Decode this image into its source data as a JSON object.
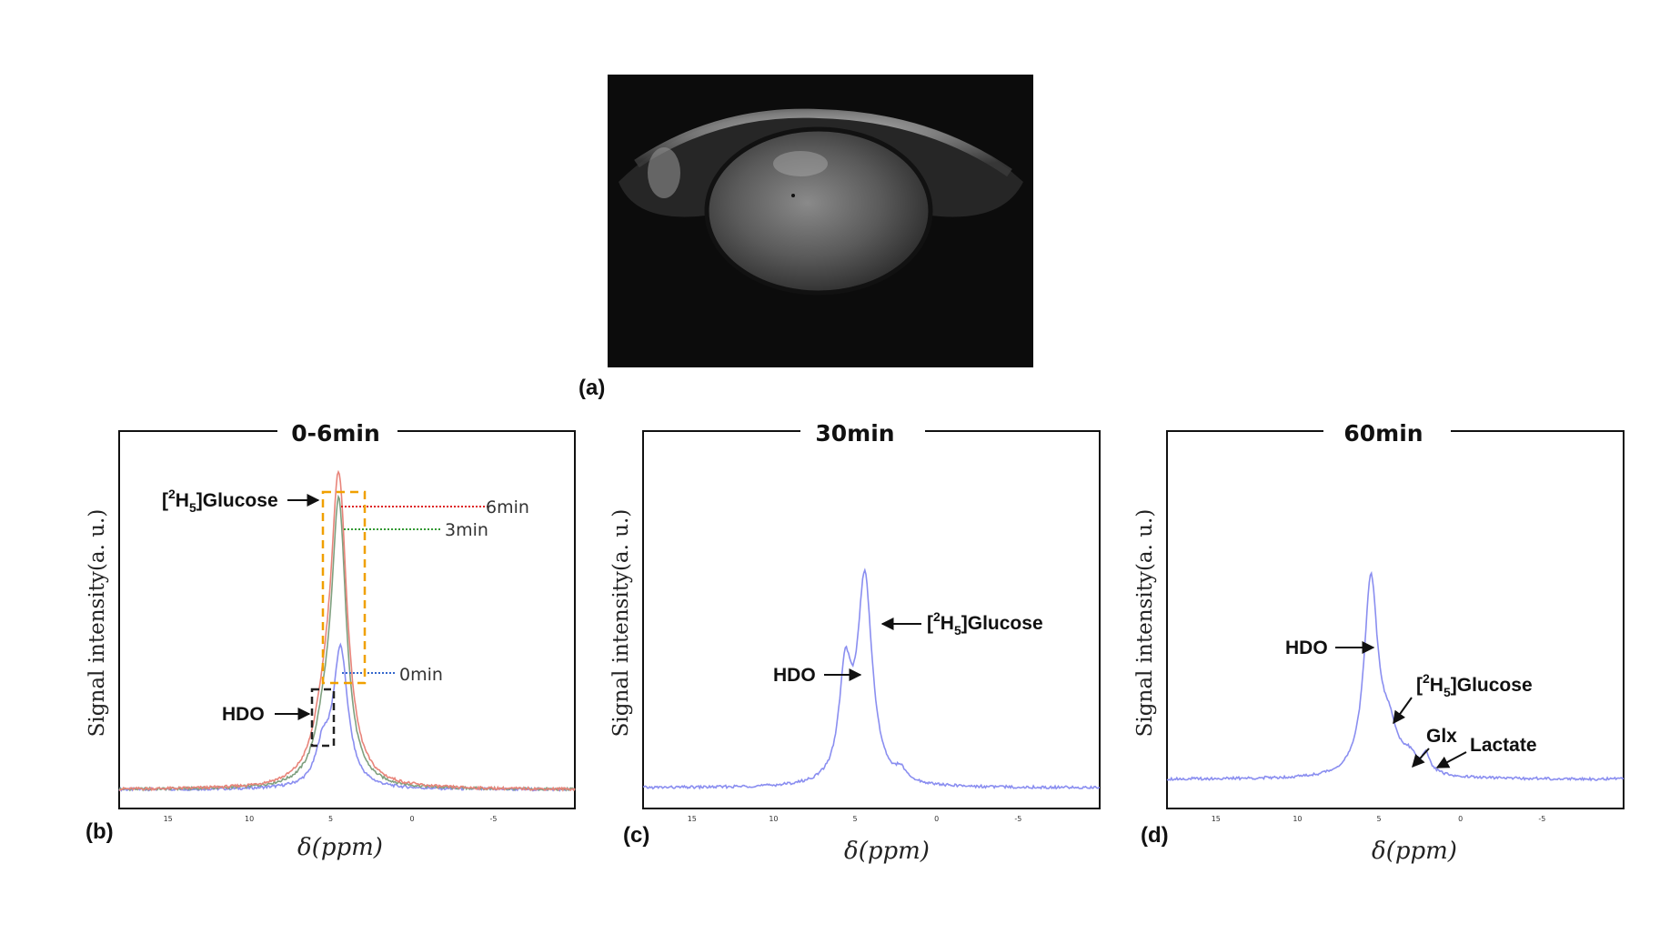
{
  "figure": {
    "label_a": "(a)",
    "label_b": "(b)",
    "label_c": "(c)",
    "label_d": "(d)"
  },
  "mri_image": {
    "description_icon": "brain-mri-image"
  },
  "colors": {
    "series_0min": "#8a8ef0",
    "series_3min": "#7fa07f",
    "series_6min": "#e8847a",
    "guide_6min": "#dd2222",
    "guide_3min": "#339933",
    "guide_0min": "#3366cc",
    "box_glucose": "#f0a000",
    "box_hdo": "#222222"
  },
  "chart_data": [
    {
      "type": "line",
      "title": "0-6min",
      "xlabel": "δ(ppm)",
      "ylabel": "Signal intensity(a. u.)",
      "xlim": [
        18,
        -10
      ],
      "x_ticks": [
        "15",
        "10",
        "5",
        "0",
        "-5"
      ],
      "series": [
        {
          "name": "0min",
          "peaks": [
            {
              "ppm": 4.4,
              "height": 0.4,
              "width": 0.55
            },
            {
              "ppm": 5.5,
              "height": 0.1,
              "width": 0.5
            }
          ],
          "baseline": 0.015
        },
        {
          "name": "3min",
          "peaks": [
            {
              "ppm": 4.5,
              "height": 0.8,
              "width": 0.55
            },
            {
              "ppm": 5.4,
              "height": 0.12,
              "width": 0.7
            }
          ],
          "baseline": 0.015
        },
        {
          "name": "6min",
          "peaks": [
            {
              "ppm": 4.5,
              "height": 0.86,
              "width": 0.6
            },
            {
              "ppm": 5.4,
              "height": 0.14,
              "width": 0.8
            }
          ],
          "baseline": 0.015
        }
      ],
      "annotations": {
        "glucose_prefix": "[",
        "glucose_sup": "2",
        "glucose_H": "]H",
        "glucose_sub": "5",
        "glucose_suffix": "]Glucose",
        "hdo": "HDO",
        "t6": "6min",
        "t3": "3min",
        "t0": "0min"
      }
    },
    {
      "type": "line",
      "title": "30min",
      "xlabel": "δ(ppm)",
      "ylabel": "Signal intensity(a. u.)",
      "xlim": [
        18,
        -10
      ],
      "x_ticks": [
        "15",
        "10",
        "5",
        "0",
        "-5"
      ],
      "series": [
        {
          "name": "",
          "peaks": [
            {
              "ppm": 4.4,
              "height": 0.59,
              "width": 0.55
            },
            {
              "ppm": 5.6,
              "height": 0.3,
              "width": 0.45
            },
            {
              "ppm": 2.2,
              "height": 0.03,
              "width": 0.35
            }
          ],
          "baseline": 0.02
        }
      ],
      "annotations": {
        "glucose": "[2H5]Glucose",
        "hdo": "HDO"
      }
    },
    {
      "type": "line",
      "title": "60min",
      "xlabel": "δ(ppm)",
      "ylabel": "Signal intensity(a. u.)",
      "xlim": [
        18,
        -10
      ],
      "x_ticks": [
        "15",
        "10",
        "5",
        "0",
        "-5"
      ],
      "series": [
        {
          "name": "",
          "peaks": [
            {
              "ppm": 5.5,
              "height": 0.56,
              "width": 0.5
            },
            {
              "ppm": 4.4,
              "height": 0.12,
              "width": 0.7
            },
            {
              "ppm": 3.1,
              "height": 0.04,
              "width": 0.5
            },
            {
              "ppm": 2.1,
              "height": 0.05,
              "width": 0.3
            }
          ],
          "baseline": 0.045
        }
      ],
      "annotations": {
        "glucose": "[2H5]Glucose",
        "hdo": "HDO",
        "glx": "Glx",
        "lactate": "Lactate"
      }
    }
  ]
}
